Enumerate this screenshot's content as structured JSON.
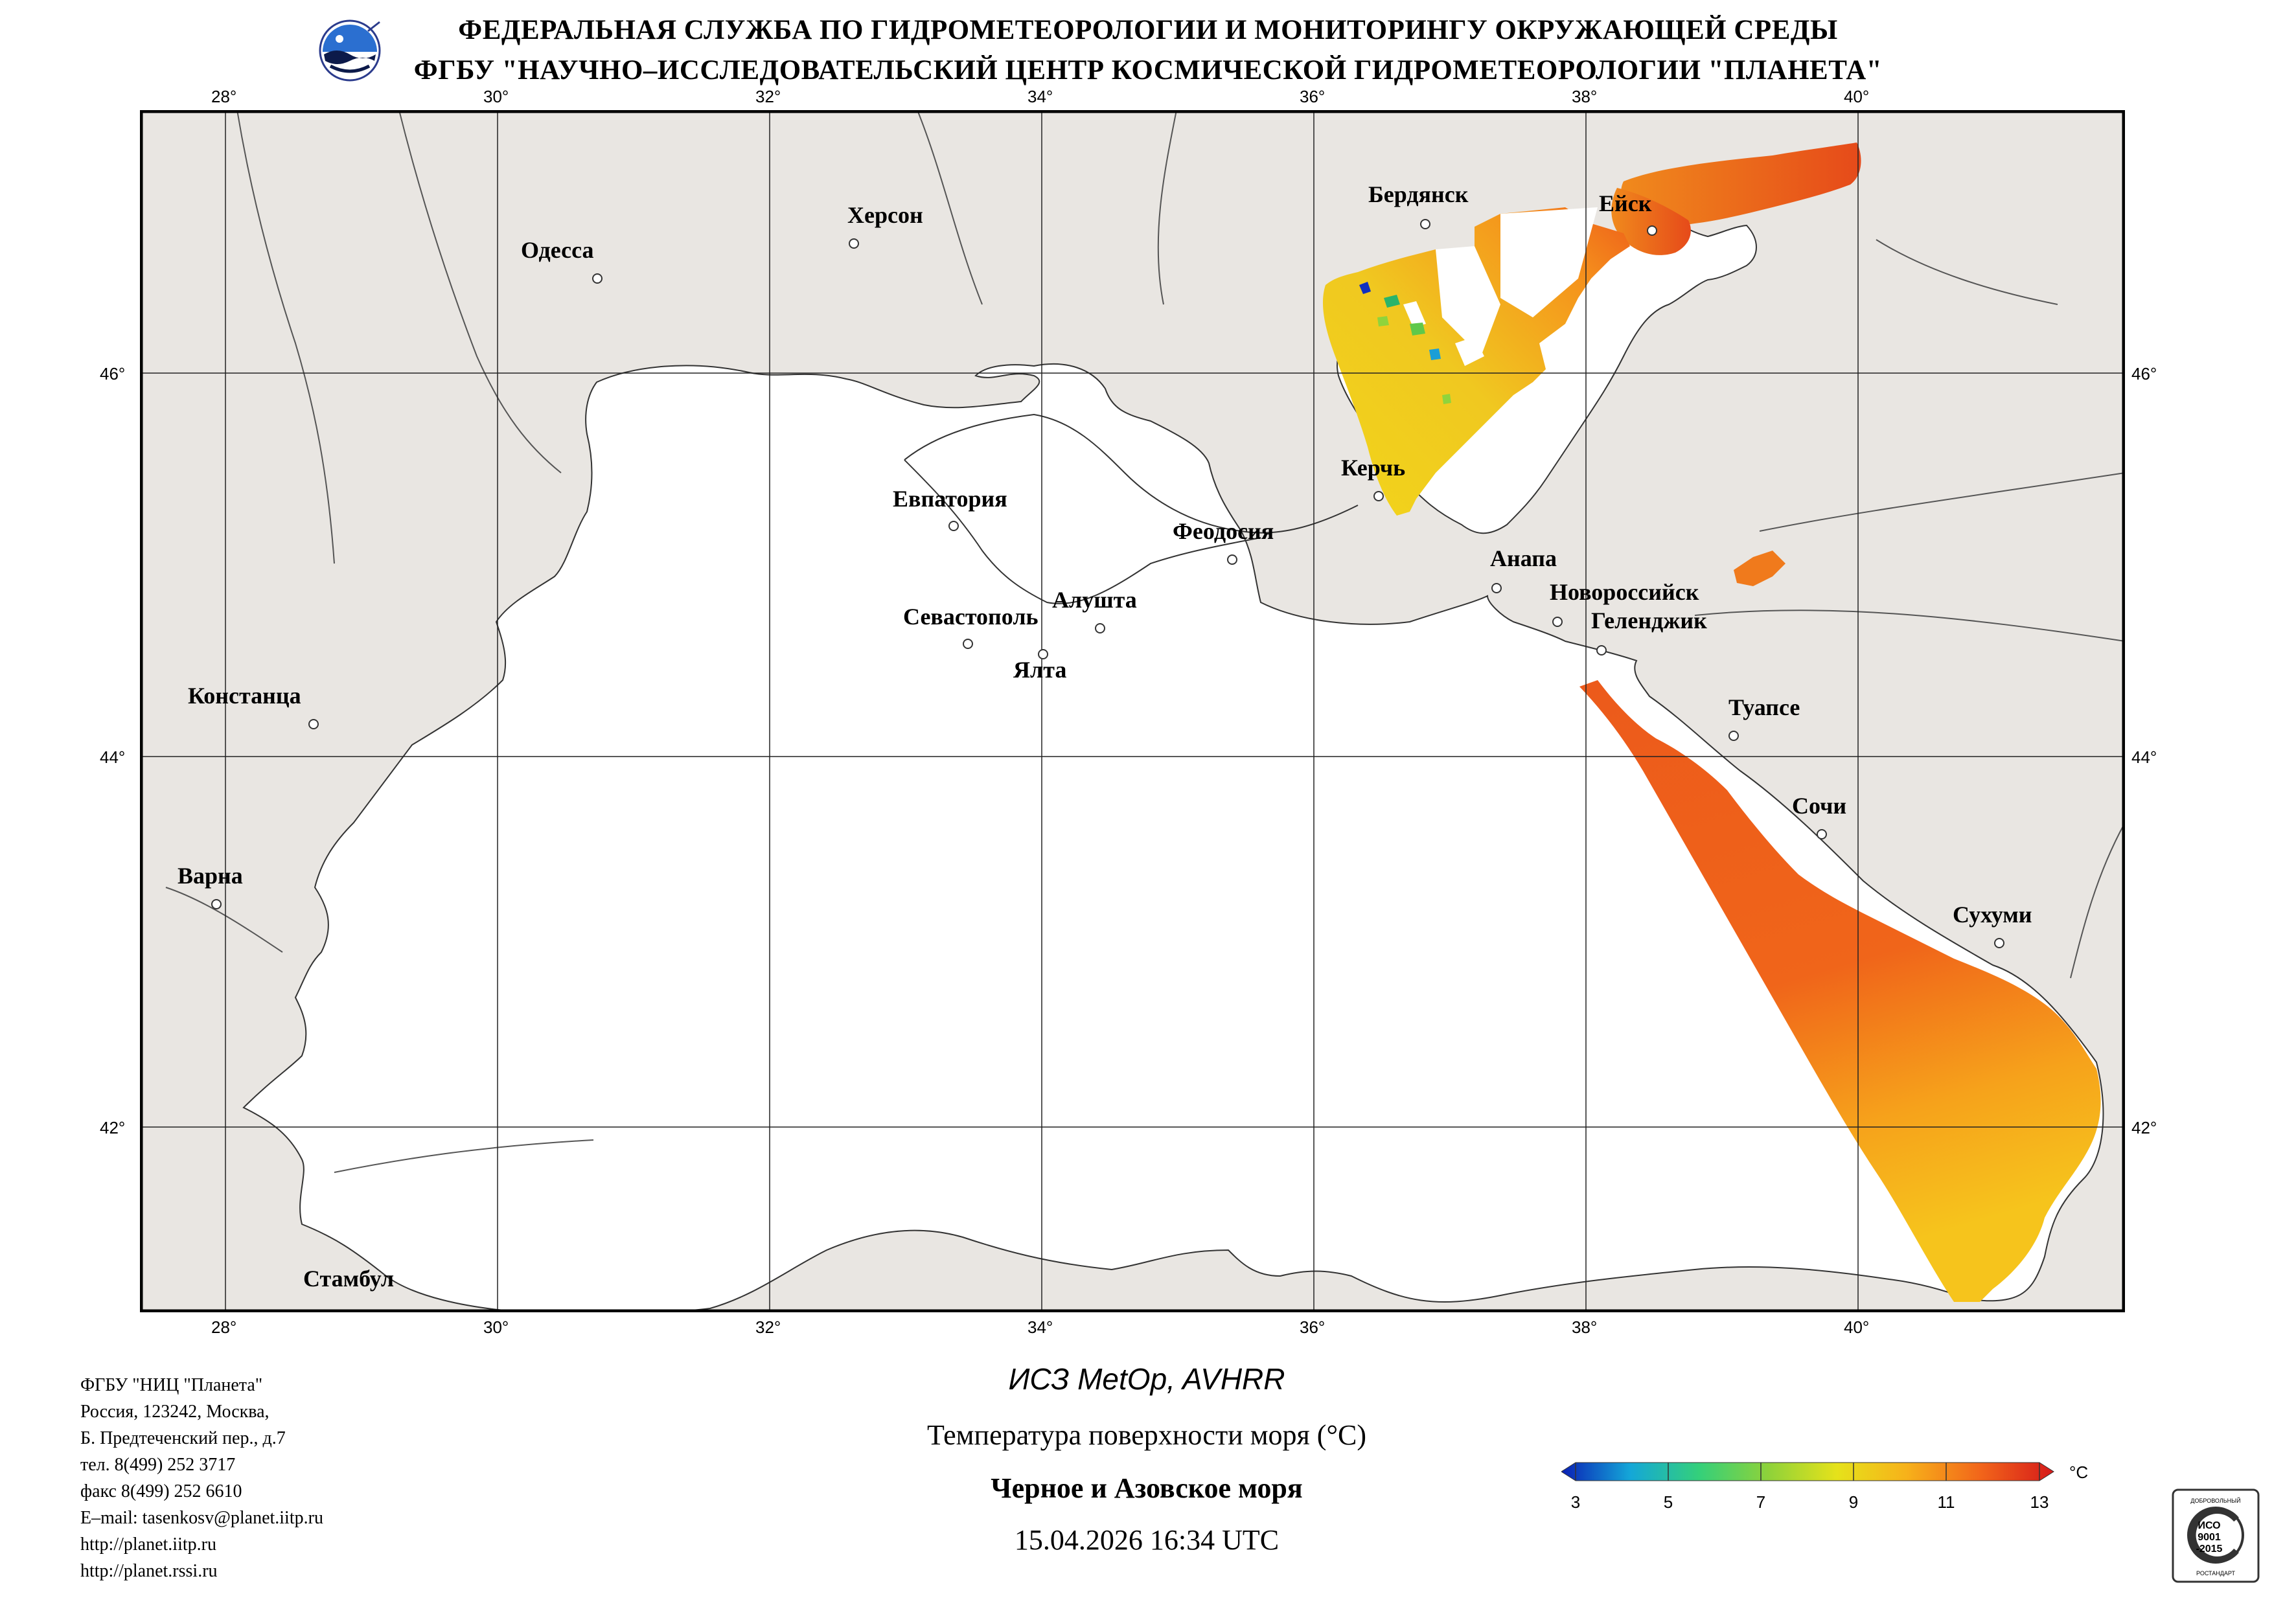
{
  "header": {
    "line1": "ФЕДЕРАЛЬНАЯ СЛУЖБА ПО ГИДРОМЕТЕОРОЛОГИИ И МОНИТОРИНГУ ОКРУЖАЮЩЕЙ СРЕДЫ",
    "line2": "ФГБУ \"НАУЧНО–ИССЛЕДОВАТЕЛЬСКИЙ ЦЕНТР КОСМИЧЕСКОЙ ГИДРОМЕТЕОРОЛОГИИ \"ПЛАНЕТА\""
  },
  "map": {
    "lon_labels": [
      "28°",
      "30°",
      "32°",
      "34°",
      "36°",
      "38°",
      "40°"
    ],
    "lat_labels": [
      "46°",
      "44°",
      "42°"
    ],
    "cities": [
      {
        "name": "Одесса"
      },
      {
        "name": "Херсон"
      },
      {
        "name": "Бердянск"
      },
      {
        "name": "Ейск"
      },
      {
        "name": "Евпатория"
      },
      {
        "name": "Керчь"
      },
      {
        "name": "Феодосия"
      },
      {
        "name": "Анапа"
      },
      {
        "name": "Новороссийск"
      },
      {
        "name": "Геленджик"
      },
      {
        "name": "Севастополь"
      },
      {
        "name": "Алушта"
      },
      {
        "name": "Ялта"
      },
      {
        "name": "Констанца"
      },
      {
        "name": "Туапсе"
      },
      {
        "name": "Сочи"
      },
      {
        "name": "Варна"
      },
      {
        "name": "Сухуми"
      },
      {
        "name": "Стамбул"
      }
    ],
    "colors": {
      "land": "#e9e6e2",
      "sea": "#ffffff",
      "grid": "#222222"
    }
  },
  "info": [
    "ФГБУ \"НИЦ \"Планета\"",
    "Россия, 123242, Москва,",
    "Б. Предтеченский пер., д.7",
    "тел. 8(499) 252 3717",
    "факс 8(499) 252 6610",
    "E–mail: tasenkosv@planet.iitp.ru",
    "http://planet.iitp.ru",
    "http://planet.rssi.ru"
  ],
  "caption": {
    "satellite": "ИСЗ MetOp, AVHRR",
    "product": "Температура поверхности моря (°C)",
    "region": "Черное и Азовское моря",
    "datetime": "15.04.2026 16:34 UTC"
  },
  "colorbar": {
    "unit": "°C",
    "ticks": [
      "3",
      "5",
      "7",
      "9",
      "11",
      "13"
    ],
    "range": [
      3,
      13
    ],
    "colors": [
      "#0a1fb5",
      "#14a7d8",
      "#34d07a",
      "#8ed23a",
      "#e6e21a",
      "#f7b21a",
      "#f2661a",
      "#d61a1a"
    ]
  },
  "iso_badge": {
    "top_text": "ДОБРОВОЛЬНЫЙ",
    "label1": "ИСО",
    "label2": "9001",
    "label3": "-2015",
    "bottom_text": "РОСТАНДАРТ"
  }
}
